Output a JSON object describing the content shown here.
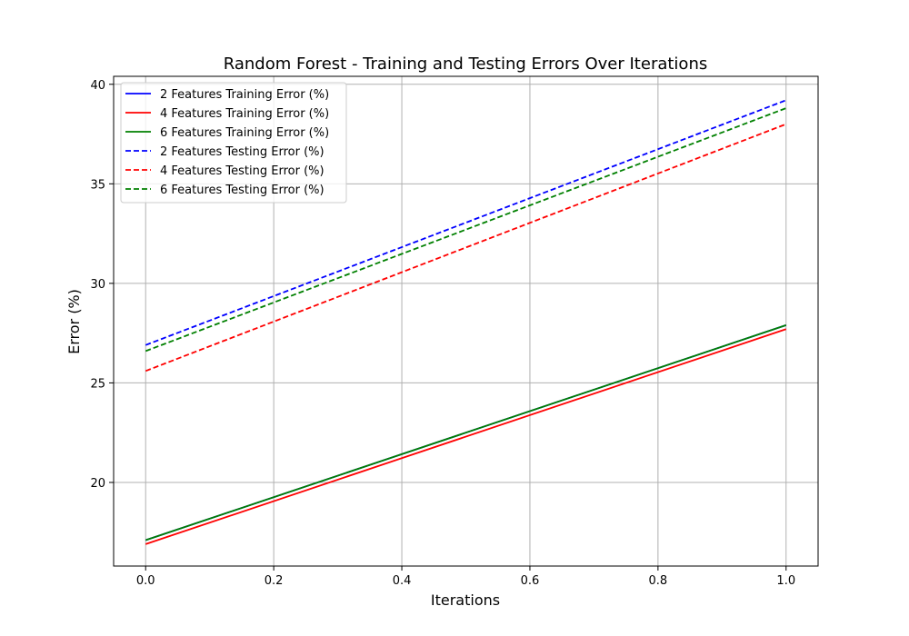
{
  "chart_data": {
    "type": "line",
    "title": "Random Forest - Training and Testing Errors Over Iterations",
    "xlabel": "Iterations",
    "ylabel": "Error (%)",
    "xlim": [
      -0.05,
      1.05
    ],
    "ylim": [
      15.8,
      40.4
    ],
    "xticks": [
      0.0,
      0.2,
      0.4,
      0.6,
      0.8,
      1.0
    ],
    "xtick_labels": [
      "0.0",
      "0.2",
      "0.4",
      "0.6",
      "0.8",
      "1.0"
    ],
    "yticks": [
      20,
      25,
      30,
      35,
      40
    ],
    "ytick_labels": [
      "20",
      "25",
      "30",
      "35",
      "40"
    ],
    "grid": true,
    "legend_position": "top-left",
    "series": [
      {
        "name": "2 Features Training Error (%)",
        "x": [
          0.0,
          1.0
        ],
        "y": [
          17.1,
          27.9
        ],
        "color": "#0000ff",
        "style": "solid"
      },
      {
        "name": "4 Features Training Error (%)",
        "x": [
          0.0,
          1.0
        ],
        "y": [
          16.9,
          27.7
        ],
        "color": "#ff0000",
        "style": "solid"
      },
      {
        "name": "6 Features Training Error (%)",
        "x": [
          0.0,
          1.0
        ],
        "y": [
          17.1,
          27.9
        ],
        "color": "#008000",
        "style": "solid"
      },
      {
        "name": "2 Features Testing Error (%)",
        "x": [
          0.0,
          1.0
        ],
        "y": [
          26.9,
          39.2
        ],
        "color": "#0000ff",
        "style": "dashed"
      },
      {
        "name": "4 Features Testing Error (%)",
        "x": [
          0.0,
          1.0
        ],
        "y": [
          25.6,
          38.0
        ],
        "color": "#ff0000",
        "style": "dashed"
      },
      {
        "name": "6 Features Testing Error (%)",
        "x": [
          0.0,
          1.0
        ],
        "y": [
          26.6,
          38.8
        ],
        "color": "#008000",
        "style": "dashed"
      }
    ]
  }
}
